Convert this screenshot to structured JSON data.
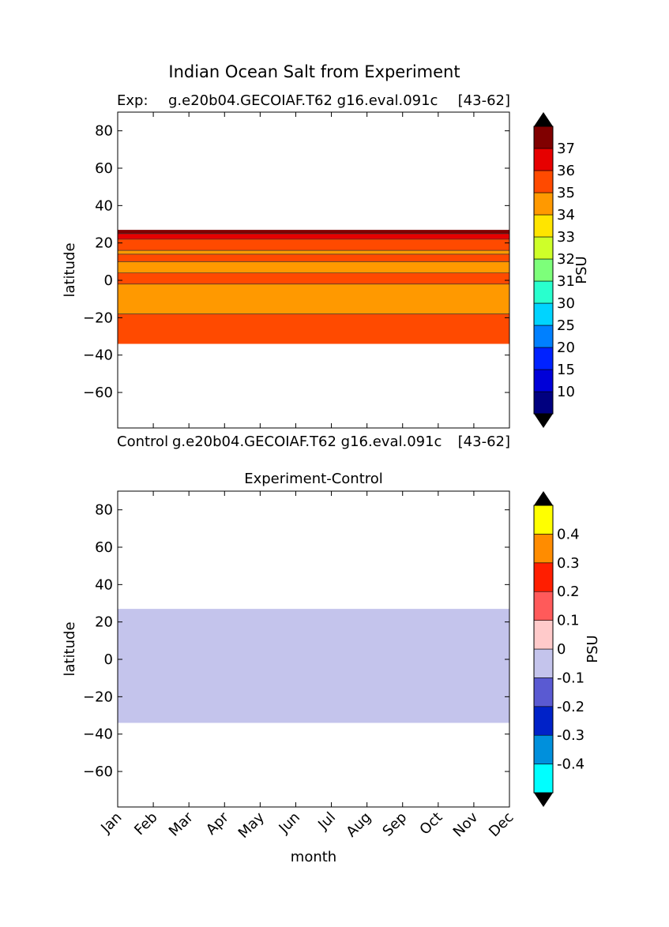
{
  "figure_title": "Indian Ocean Salt from Experiment",
  "panel1": {
    "exp_label": "Exp:",
    "case_name": "g.e20b04.GECOIAF.T62 g16.eval.091c",
    "years": "[43-62]",
    "control_label": "Control",
    "control_case": "g.e20b04.GECOIAF.T62 g16.eval.091c",
    "control_years": "[43-62]"
  },
  "panel2": {
    "title": "Experiment-Control"
  },
  "chart_data": [
    {
      "type": "heatmap",
      "title": "Exp:    g.e20b04.GECOIAF.T62 g16.eval.091c [43-62]",
      "xlabel": "",
      "ylabel": "latitude",
      "x_categories": [
        "Jan",
        "Feb",
        "Mar",
        "Apr",
        "May",
        "Jun",
        "Jul",
        "Aug",
        "Sep",
        "Oct",
        "Nov",
        "Dec"
      ],
      "xlim": [
        0,
        11
      ],
      "ylim": [
        -79,
        90
      ],
      "yticks": [
        80,
        60,
        40,
        20,
        0,
        -20,
        -40,
        -60
      ],
      "data_extent_lat": [
        -34,
        27
      ],
      "latitude_bands": [
        {
          "lat_range": [
            -34,
            -18
          ],
          "salinity_band": "35-36",
          "color": "#ff4a00"
        },
        {
          "lat_range": [
            -18,
            -2
          ],
          "salinity_band": "34-35",
          "color": "#ff9900"
        },
        {
          "lat_range": [
            -2,
            4
          ],
          "salinity_band": "35-36",
          "color": "#ff4a00"
        },
        {
          "lat_range": [
            4,
            10
          ],
          "salinity_band": "34-35",
          "color": "#ff9900"
        },
        {
          "lat_range": [
            10,
            14
          ],
          "salinity_band": "35-36",
          "color": "#ff4a00"
        },
        {
          "lat_range": [
            14,
            16
          ],
          "salinity_band": "34-35",
          "color": "#ff9900"
        },
        {
          "lat_range": [
            16,
            22
          ],
          "salinity_band": "35-36",
          "color": "#ff4a00"
        },
        {
          "lat_range": [
            22,
            25
          ],
          "salinity_band": "36-37",
          "color": "#e60000"
        },
        {
          "lat_range": [
            25,
            27
          ],
          "salinity_band": ">37",
          "color": "#800000"
        }
      ],
      "colorbar": {
        "label": "PSU",
        "ticks": [
          "10",
          "15",
          "20",
          "25",
          "30",
          "31",
          "32",
          "33",
          "34",
          "35",
          "36",
          "37"
        ],
        "colors": [
          "#00007f",
          "#0000d8",
          "#0022ff",
          "#0080ff",
          "#00d4ff",
          "#29ffce",
          "#7dff7a",
          "#ceff29",
          "#ffe500",
          "#ff9900",
          "#ff4a00",
          "#e60000",
          "#800000"
        ],
        "extend_color": "#000000"
      }
    },
    {
      "type": "heatmap",
      "title": "Experiment-Control",
      "xlabel": "month",
      "ylabel": "latitude",
      "x_categories": [
        "Jan",
        "Feb",
        "Mar",
        "Apr",
        "May",
        "Jun",
        "Jul",
        "Aug",
        "Sep",
        "Oct",
        "Nov",
        "Dec"
      ],
      "xlim": [
        0,
        11
      ],
      "ylim": [
        -79,
        90
      ],
      "yticks": [
        80,
        60,
        40,
        20,
        0,
        -20,
        -40,
        -60
      ],
      "data_extent_lat": [
        -34,
        27
      ],
      "latitude_bands": [
        {
          "lat_range": [
            -34,
            27
          ],
          "difference_band": "-0.1 to 0",
          "color": "#c4c4ec"
        }
      ],
      "colorbar": {
        "label": "PSU",
        "ticks": [
          "-0.4",
          "-0.3",
          "-0.2",
          "-0.1",
          "0",
          "0.1",
          "0.2",
          "0.3",
          "0.4"
        ],
        "colors": [
          "#00ffff",
          "#0090dc",
          "#0022c8",
          "#5a5ad2",
          "#c4c4ec",
          "#ffcaca",
          "#ff5a5a",
          "#ff1e00",
          "#ff8c00",
          "#ffff00"
        ],
        "extend_color": "#000000"
      }
    }
  ]
}
